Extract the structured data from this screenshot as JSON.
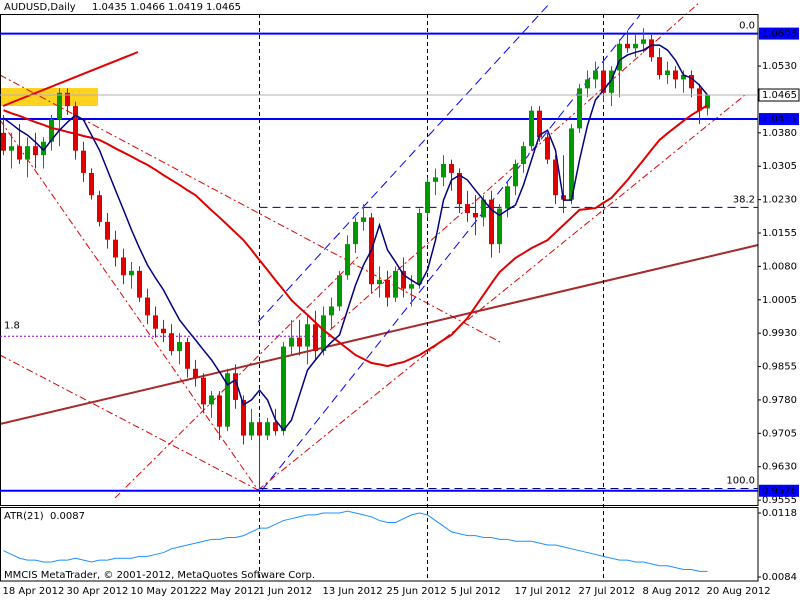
{
  "chart_data": [
    {
      "type": "candlestick",
      "title": "AUDUSD,Daily",
      "categories": [
        "18 Apr 2012",
        null,
        null,
        null,
        null,
        null,
        null,
        null,
        "30 Apr 2012",
        null,
        null,
        null,
        null,
        null,
        null,
        null,
        "10 May 2012",
        null,
        null,
        null,
        null,
        null,
        null,
        null,
        "22 May 2012",
        null,
        null,
        null,
        null,
        null,
        null,
        null,
        "1 Jun 2012",
        null,
        null,
        null,
        null,
        null,
        null,
        null,
        "13 Jun 2012",
        null,
        null,
        null,
        null,
        null,
        null,
        null,
        "25 Jun 2012",
        null,
        null,
        null,
        null,
        null,
        null,
        null,
        "5 Jul 2012",
        null,
        null,
        null,
        null,
        null,
        null,
        null,
        "17 Jul 2012",
        null,
        null,
        null,
        null,
        null,
        null,
        null,
        "27 Jul 2012",
        null,
        null,
        null,
        null,
        null,
        null,
        null,
        "8 Aug 2012",
        null,
        null,
        null,
        null,
        null,
        null,
        null,
        "20 Aug 2012"
      ],
      "open": [
        1.038,
        1.034,
        1.035,
        1.032,
        1.035,
        1.033,
        1.036,
        1.041,
        1.047,
        1.044,
        1.034,
        1.029,
        1.024,
        1.018,
        1.014,
        1.01,
        1.006,
        1.007,
        1.001,
        0.997,
        0.994,
        0.993,
        0.989,
        0.991,
        0.985,
        0.983,
        0.977,
        0.979,
        0.972,
        0.984,
        0.978,
        0.97,
        0.973,
        0.97,
        0.973,
        0.971,
        0.99,
        0.992,
        0.99,
        0.995,
        0.989,
        0.997,
        0.999,
        1.006,
        1.013,
        1.018,
        1.019,
        1.004,
        1.005,
        1.001,
        1.007,
        1.003,
        1.004,
        1.02,
        1.027,
        1.028,
        1.031,
        1.029,
        1.022,
        1.02,
        1.019,
        1.023,
        1.013,
        1.021,
        1.026,
        1.031,
        1.035,
        1.043,
        1.037,
        1.032,
        1.024,
        1.023,
        1.039,
        1.048,
        1.05,
        1.052,
        1.047,
        1.052,
        1.058,
        1.057,
        1.058,
        1.059,
        1.055,
        1.051,
        1.052,
        1.05,
        1.051,
        1.048,
        1.0435
      ],
      "high": [
        1.042,
        1.038,
        1.04,
        1.037,
        1.038,
        1.037,
        1.042,
        1.048,
        1.048,
        1.045,
        1.036,
        1.03,
        1.025,
        1.02,
        1.016,
        1.012,
        1.009,
        1.008,
        1.003,
        0.999,
        0.996,
        0.995,
        0.993,
        0.992,
        0.987,
        0.984,
        0.98,
        0.98,
        0.985,
        0.986,
        0.979,
        0.976,
        0.974,
        0.974,
        0.976,
        0.991,
        0.996,
        0.996,
        0.997,
        0.998,
        0.999,
        1.001,
        1.007,
        1.015,
        1.019,
        1.022,
        1.02,
        1.008,
        1.007,
        1.008,
        1.01,
        1.006,
        1.021,
        1.028,
        1.03,
        1.033,
        1.032,
        1.03,
        1.025,
        1.024,
        1.024,
        1.025,
        1.022,
        1.027,
        1.032,
        1.036,
        1.044,
        1.044,
        1.038,
        1.033,
        1.033,
        1.04,
        1.049,
        1.052,
        1.054,
        1.054,
        1.053,
        1.059,
        1.061,
        1.06,
        1.0615,
        1.06,
        1.057,
        1.054,
        1.053,
        1.052,
        1.052,
        1.049,
        1.0466
      ],
      "low": [
        1.033,
        1.03,
        1.031,
        1.028,
        1.03,
        1.03,
        1.034,
        1.035,
        1.042,
        1.032,
        1.027,
        1.023,
        1.017,
        1.012,
        1.008,
        1.004,
        1.003,
        1.0,
        0.995,
        0.992,
        0.991,
        0.988,
        0.986,
        0.983,
        0.981,
        0.975,
        0.974,
        0.969,
        0.971,
        0.976,
        0.968,
        0.969,
        0.9581,
        0.969,
        0.97,
        0.97,
        0.988,
        0.988,
        0.986,
        0.987,
        0.988,
        0.994,
        0.998,
        1.005,
        1.011,
        1.016,
        1.002,
        1.001,
        0.999,
        1.0,
        1.001,
        0.999,
        1.003,
        1.019,
        1.024,
        1.026,
        1.025,
        1.02,
        1.018,
        1.015,
        1.017,
        1.01,
        1.011,
        1.019,
        1.024,
        1.029,
        1.034,
        1.036,
        1.031,
        1.022,
        1.02,
        1.022,
        1.038,
        1.046,
        1.048,
        1.045,
        1.044,
        1.046,
        1.056,
        1.055,
        1.056,
        1.054,
        1.05,
        1.049,
        1.048,
        1.047,
        1.046,
        1.04,
        1.0419
      ],
      "close": [
        1.034,
        1.035,
        1.032,
        1.035,
        1.033,
        1.036,
        1.041,
        1.047,
        1.044,
        1.034,
        1.029,
        1.024,
        1.018,
        1.014,
        1.01,
        1.006,
        1.007,
        1.001,
        0.997,
        0.994,
        0.993,
        0.989,
        0.991,
        0.985,
        0.983,
        0.977,
        0.979,
        0.972,
        0.984,
        0.978,
        0.97,
        0.973,
        0.97,
        0.973,
        0.971,
        0.99,
        0.992,
        0.99,
        0.995,
        0.989,
        0.997,
        0.999,
        1.006,
        1.013,
        1.018,
        1.019,
        1.004,
        1.005,
        1.001,
        1.007,
        1.003,
        1.004,
        1.02,
        1.027,
        1.028,
        1.031,
        1.029,
        1.022,
        1.02,
        1.019,
        1.023,
        1.013,
        1.021,
        1.026,
        1.031,
        1.035,
        1.043,
        1.037,
        1.032,
        1.024,
        1.023,
        1.039,
        1.048,
        1.05,
        1.052,
        1.047,
        1.052,
        1.058,
        1.057,
        1.058,
        1.059,
        1.055,
        1.051,
        1.052,
        1.05,
        1.051,
        1.048,
        1.043,
        1.0465
      ],
      "up_color": "#009900",
      "down_color": "#e00000",
      "lines": [
        {
          "color": "#e00000",
          "values": [
            1.0431,
            1.0424,
            1.0418,
            1.0411,
            1.0404,
            1.0398,
            1.0391,
            1.0387,
            1.0382,
            1.0378,
            1.0373,
            1.0369,
            1.0364,
            1.0355,
            1.0345,
            1.0336,
            1.0327,
            1.0317,
            1.0308,
            1.0297,
            1.0285,
            1.0274,
            1.0263,
            1.0251,
            1.024,
            1.0223,
            1.0206,
            1.019,
            1.0173,
            1.0156,
            1.0139,
            1.0117,
            1.0094,
            1.0072,
            1.0049,
            1.0027,
            1.0004,
            0.9987,
            0.9971,
            0.9954,
            0.9937,
            0.9923,
            0.9909,
            0.9895,
            0.9881,
            0.9872,
            0.9863,
            0.986,
            0.9856,
            0.9861,
            0.9865,
            0.9873,
            0.9881,
            0.9892,
            0.9903,
            0.9915,
            0.9926,
            0.9945,
            0.9964,
            0.999,
            1.0016,
            1.0042,
            1.0067,
            1.0083,
            1.0099,
            1.011,
            1.0121,
            1.013,
            1.0139,
            1.0156,
            1.0173,
            1.019,
            1.0207,
            1.0209,
            1.0211,
            1.0223,
            1.0234,
            1.0254,
            1.0274,
            1.0297,
            1.0319,
            1.0342,
            1.0364,
            1.0379,
            1.0393,
            1.0407,
            1.042,
            1.0431,
            1.0442
          ]
        },
        {
          "color": "#000080",
          "values": [
            1.0413,
            1.04,
            1.0386,
            1.0375,
            1.0359,
            1.0341,
            1.0364,
            1.0386,
            1.0404,
            1.042,
            1.0409,
            1.0375,
            1.0341,
            1.0296,
            1.0251,
            1.0207,
            1.0162,
            1.0121,
            1.0083,
            1.0054,
            1.0027,
            0.9993,
            0.996,
            0.9937,
            0.9915,
            0.9892,
            0.987,
            0.9843,
            0.9814,
            0.9825,
            0.9769,
            0.978,
            0.9802,
            0.978,
            0.9735,
            0.9712,
            0.9735,
            0.9791,
            0.9847,
            0.987,
            0.9892,
            0.991,
            0.9926,
            0.9982,
            1.0038,
            1.0083,
            1.0117,
            1.0173,
            1.0117,
            1.009,
            1.0061,
            1.0049,
            1.0038,
            1.0072,
            1.0139,
            1.0229,
            1.0274,
            1.0285,
            1.0274,
            1.0251,
            1.0229,
            1.0207,
            1.0195,
            1.0207,
            1.0218,
            1.0263,
            1.0319,
            1.0375,
            1.0386,
            1.0341,
            1.0229,
            1.0229,
            1.0319,
            1.0397,
            1.0454,
            1.0476,
            1.0499,
            1.0543,
            1.0555,
            1.0561,
            1.0566,
            1.0577,
            1.0577,
            1.0566,
            1.0543,
            1.051,
            1.0503,
            1.0487,
            1.0465
          ]
        }
      ],
      "ylim": [
        0.9544,
        1.0647
      ],
      "yticks": [
        {
          "value": 1.053,
          "label": "1.0530"
        },
        {
          "value": 1.038,
          "label": "1.0380"
        },
        1.0305,
        {
          "value": 1.023,
          "label": "1.0230"
        },
        1.0155,
        {
          "value": 1.008,
          "label": "1.0080"
        },
        1.0005,
        {
          "value": 0.993,
          "label": "0.9930"
        },
        0.9855,
        {
          "value": 0.978,
          "label": "0.9780"
        },
        0.9705,
        {
          "value": 0.963,
          "label": "0.9630"
        },
        0.9555
      ],
      "levels": [
        1.0603,
        1.0411,
        0.9576
      ],
      "level_color": "#0000ff",
      "fibonacci": {
        "high": 1.0603,
        "low": 0.9581,
        "levels": [
          {
            "value": 0,
            "label": "0.0"
          },
          38.2,
          {
            "value": 100,
            "label": "100.0"
          }
        ]
      },
      "annotation": {
        "text": "1.8",
        "price": 0.9923
      },
      "watermark": "MMCIS MetaTrader, © 2001-2012, MetaQuotes Software Corp."
    },
    {
      "type": "line",
      "title": "ATR(21)",
      "color": "#1e90ff",
      "values": [
        0.0098,
        0.0096,
        0.0094,
        0.0093,
        0.0093,
        0.0092,
        0.0092,
        0.0093,
        0.0093,
        0.0094,
        0.0093,
        0.0092,
        0.0093,
        0.0093,
        0.0094,
        0.0094,
        0.0094,
        0.0095,
        0.0095,
        0.0096,
        0.0097,
        0.0099,
        0.01,
        0.0101,
        0.0102,
        0.0103,
        0.0104,
        0.0104,
        0.0105,
        0.0105,
        0.0106,
        0.0108,
        0.011,
        0.011,
        0.0112,
        0.0114,
        0.0115,
        0.0116,
        0.0117,
        0.0117,
        0.0118,
        0.0118,
        0.0118,
        0.0119,
        0.0118,
        0.0117,
        0.0116,
        0.0114,
        0.0113,
        0.0113,
        0.0115,
        0.0117,
        0.0118,
        0.0117,
        0.0114,
        0.0111,
        0.0108,
        0.0107,
        0.0106,
        0.0106,
        0.0105,
        0.0105,
        0.0104,
        0.0104,
        0.0103,
        0.0103,
        0.0103,
        0.0102,
        0.0101,
        0.0101,
        0.01,
        0.0099,
        0.0098,
        0.0097,
        0.0096,
        0.0095,
        0.0094,
        0.0093,
        0.0093,
        0.0092,
        0.0092,
        0.0091,
        0.009,
        0.009,
        0.0089,
        0.0088,
        0.0088,
        0.0087,
        0.0087
      ],
      "ylim": [
        0.00819,
        0.01212
      ],
      "yticks": [
        0.0118,
        0.0084
      ]
    }
  ]
}
